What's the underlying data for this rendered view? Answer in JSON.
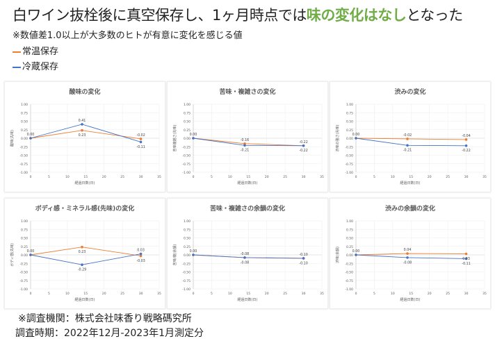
{
  "header": {
    "title_pre": "白ワイン抜栓後に真空保存し、1ヶ月時点では",
    "title_highlight": "味の変化はなし",
    "title_post": "となった",
    "note": "※数値差1.0以上が大多数のヒトが有意に変化を感じる値",
    "highlight_color": "#70ad47"
  },
  "legend": [
    {
      "label": "常温保存",
      "color": "#ed7d31"
    },
    {
      "label": "冷蔵保存",
      "color": "#4472c4"
    }
  ],
  "footer": {
    "source": "※調査機関：株式会社味香り戦略碼究所",
    "period": "調査時期：2022年12月-2023年1月測定分"
  },
  "chart_data": [
    {
      "type": "line",
      "title": "酸味の変化",
      "xlabel": "経過日数(日)",
      "ylabel": "酸味(先味)",
      "x": [
        0,
        14,
        30
      ],
      "xlim": [
        0,
        35
      ],
      "ylim": [
        -1,
        1
      ],
      "xticks": [
        "0",
        "5",
        "10",
        "15",
        "20",
        "25",
        "30",
        "35"
      ],
      "yticks": [
        "1.00",
        "0.75",
        "0.50",
        "0.25",
        "0.00",
        "-0.25",
        "-0.50",
        "-0.75",
        "-1.00"
      ],
      "series": [
        {
          "name": "常温保存",
          "values": [
            0,
            0.23,
            -0.02
          ],
          "labels": [
            "0.00",
            "0.23",
            "-0.02"
          ]
        },
        {
          "name": "冷蔵保存",
          "values": [
            0,
            0.41,
            -0.11
          ],
          "labels": [
            "0.00",
            "0.41",
            "-0.11"
          ]
        }
      ]
    },
    {
      "type": "line",
      "title": "苦味・複雑さの変化",
      "xlabel": "経過日数(日)",
      "ylabel": "苦味複雑さ(先味)",
      "x": [
        0,
        14,
        30
      ],
      "xlim": [
        0,
        35
      ],
      "ylim": [
        -1,
        1
      ],
      "xticks": [
        "0",
        "5",
        "10",
        "15",
        "20",
        "25",
        "30",
        "35"
      ],
      "yticks": [
        "1.00",
        "0.75",
        "0.50",
        "0.25",
        "0.00",
        "-0.25",
        "-0.50",
        "-0.75",
        "-1.00"
      ],
      "series": [
        {
          "name": "常温保存",
          "values": [
            0,
            -0.16,
            -0.22
          ],
          "labels": [
            "0.00",
            "-0.16",
            "-0.22"
          ]
        },
        {
          "name": "冷蔵保存",
          "values": [
            0,
            -0.21,
            -0.22
          ],
          "labels": [
            "0.00",
            "-0.21",
            "-0.22"
          ]
        }
      ]
    },
    {
      "type": "line",
      "title": "渋みの変化",
      "xlabel": "経過日数(日)",
      "ylabel": "渋味の強さ(先味)",
      "x": [
        0,
        14,
        30
      ],
      "xlim": [
        0,
        35
      ],
      "ylim": [
        -1,
        1
      ],
      "xticks": [
        "0",
        "5",
        "10",
        "15",
        "20",
        "25",
        "30",
        "35"
      ],
      "yticks": [
        "1.00",
        "0.75",
        "0.50",
        "0.25",
        "0.00",
        "-0.25",
        "-0.50",
        "-0.75",
        "-1.00"
      ],
      "series": [
        {
          "name": "常温保存",
          "values": [
            0,
            -0.02,
            -0.04
          ],
          "labels": [
            "0.00",
            "-0.02",
            "-0.04"
          ]
        },
        {
          "name": "冷蔵保存",
          "values": [
            0,
            -0.21,
            -0.22
          ],
          "labels": [
            "0.00",
            "-0.21",
            "-0.22"
          ]
        }
      ]
    },
    {
      "type": "line",
      "title": "ボディ感・ミネラル感(先味)の変化",
      "xlabel": "経過日数(日)",
      "ylabel": "ボディ感(先味)",
      "x": [
        0,
        14,
        30
      ],
      "xlim": [
        0,
        35
      ],
      "ylim": [
        -1,
        1
      ],
      "xticks": [
        "0",
        "5",
        "10",
        "15",
        "20",
        "25",
        "30",
        "35"
      ],
      "yticks": [
        "1.00",
        "0.75",
        "0.50",
        "0.25",
        "0.00",
        "-0.25",
        "-0.50",
        "-0.75",
        "-1.00"
      ],
      "series": [
        {
          "name": "常温保存",
          "values": [
            0,
            0.23,
            -0.03
          ],
          "labels": [
            "0.00",
            "0.23",
            "-0.03"
          ]
        },
        {
          "name": "冷蔵保存",
          "values": [
            0,
            -0.29,
            0.03
          ],
          "labels": [
            "0.00",
            "-0.29",
            "0.03"
          ]
        }
      ]
    },
    {
      "type": "line",
      "title": "苦味・複雑さの余韻の変化",
      "xlabel": "経過日数(日)",
      "ylabel": "苦味/複(余韻)",
      "x": [
        0,
        14,
        30
      ],
      "xlim": [
        0,
        35
      ],
      "ylim": [
        -1,
        1
      ],
      "xticks": [
        "0",
        "5",
        "10",
        "15",
        "20",
        "25",
        "30",
        "35"
      ],
      "yticks": [
        "1.00",
        "0.75",
        "0.50",
        "0.25",
        "0.00",
        "-0.25",
        "-0.50",
        "-0.75",
        "-1.00"
      ],
      "series": [
        {
          "name": "常温保存",
          "values": [
            0,
            -0.08,
            -0.1
          ],
          "labels": [
            "0.00",
            "-0.08",
            "-0.10"
          ]
        },
        {
          "name": "冷蔵保存",
          "values": [
            0,
            -0.08,
            -0.1
          ],
          "labels": [
            "0.00",
            "-0.08",
            "-0.10"
          ]
        }
      ]
    },
    {
      "type": "line",
      "title": "渋みの余韻の変化",
      "xlabel": "経過日数(日)",
      "ylabel": "渋味(余韻)",
      "x": [
        0,
        14,
        30
      ],
      "xlim": [
        0,
        35
      ],
      "ylim": [
        -1,
        1
      ],
      "xticks": [
        "0",
        "5",
        "10",
        "15",
        "20",
        "25",
        "30",
        "35"
      ],
      "yticks": [
        "1.00",
        "0.75",
        "0.50",
        "0.25",
        "0.00",
        "-0.25",
        "-0.50",
        "-0.75",
        "-1.00"
      ],
      "series": [
        {
          "name": "常温保存",
          "values": [
            0,
            0.04,
            0.03
          ],
          "labels": [
            "0.00",
            "0.04",
            "0.03"
          ]
        },
        {
          "name": "冷蔵保存",
          "values": [
            0,
            -0.08,
            -0.11
          ],
          "labels": [
            "0.00",
            "-0.08",
            "-0.11"
          ]
        }
      ]
    }
  ]
}
